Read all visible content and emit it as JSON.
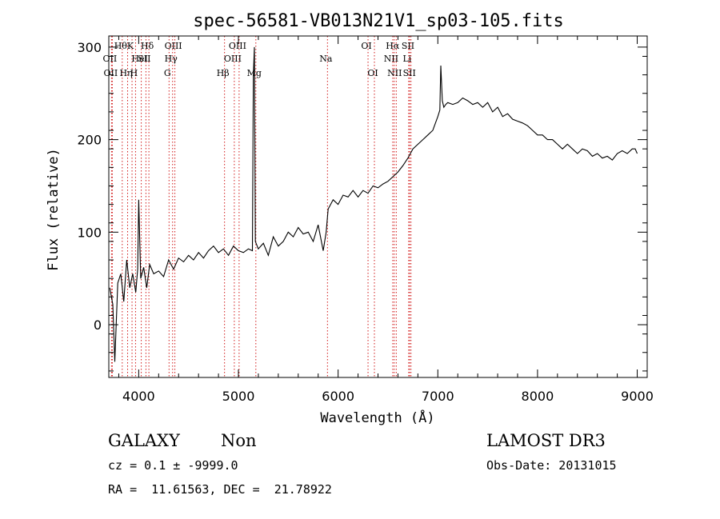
{
  "chart_data": {
    "type": "line",
    "title": "spec-56581-VB013N21V1_sp03-105.fits",
    "xlabel": "Wavelength (Å)",
    "ylabel": "Flux (relative)",
    "xlim": [
      3700,
      9100
    ],
    "ylim": [
      -57,
      312
    ],
    "x_ticks": [
      4000,
      5000,
      6000,
      7000,
      8000,
      9000
    ],
    "y_ticks": [
      0,
      100,
      200,
      300
    ],
    "grid": false,
    "line_color": "#000000",
    "marker_color": "#cc0000",
    "series": [
      {
        "x": [
          3710,
          3740,
          3760,
          3790,
          3820,
          3850,
          3880,
          3910,
          3940,
          3970,
          3990,
          4000,
          4020,
          4050,
          4080,
          4110,
          4150,
          4200,
          4250,
          4300,
          4350,
          4400,
          4450,
          4500,
          4550,
          4600,
          4650,
          4700,
          4750,
          4800,
          4850,
          4900,
          4950,
          5000,
          5050,
          5100,
          5140,
          5150,
          5160,
          5170,
          5200,
          5250,
          5300,
          5350,
          5400,
          5450,
          5500,
          5550,
          5600,
          5650,
          5700,
          5750,
          5800,
          5850,
          5880,
          5900,
          5950,
          6000,
          6050,
          6100,
          6150,
          6200,
          6250,
          6300,
          6350,
          6400,
          6450,
          6500,
          6550,
          6600,
          6650,
          6700,
          6750,
          6800,
          6850,
          6900,
          6950,
          7000,
          7020,
          7030,
          7045,
          7060,
          7080,
          7100,
          7150,
          7200,
          7250,
          7300,
          7350,
          7400,
          7450,
          7500,
          7550,
          7600,
          7650,
          7700,
          7750,
          7800,
          7850,
          7900,
          7950,
          8000,
          8050,
          8100,
          8150,
          8200,
          8250,
          8300,
          8350,
          8400,
          8450,
          8500,
          8550,
          8600,
          8650,
          8700,
          8750,
          8800,
          8850,
          8900,
          8950,
          8980,
          9000
        ],
        "y": [
          40,
          22,
          -40,
          45,
          55,
          25,
          70,
          40,
          55,
          35,
          60,
          135,
          50,
          62,
          40,
          65,
          55,
          58,
          52,
          70,
          60,
          72,
          68,
          75,
          70,
          78,
          72,
          80,
          85,
          78,
          82,
          75,
          85,
          80,
          78,
          82,
          80,
          270,
          300,
          90,
          82,
          88,
          75,
          95,
          85,
          90,
          100,
          95,
          105,
          98,
          100,
          90,
          108,
          80,
          100,
          125,
          135,
          130,
          140,
          138,
          145,
          138,
          145,
          142,
          150,
          148,
          152,
          155,
          160,
          165,
          172,
          180,
          190,
          195,
          200,
          205,
          210,
          225,
          232,
          280,
          242,
          235,
          238,
          240,
          238,
          240,
          245,
          242,
          238,
          240,
          235,
          240,
          230,
          235,
          225,
          228,
          222,
          220,
          218,
          215,
          210,
          205,
          205,
          200,
          200,
          195,
          190,
          195,
          190,
          185,
          190,
          188,
          182,
          185,
          180,
          182,
          178,
          185,
          188,
          185,
          190,
          190,
          185
        ]
      }
    ],
    "line_markers": [
      {
        "x": 3727,
        "label": "OII",
        "row": 2
      },
      {
        "x": 3735,
        "label": "OII",
        "row": 3
      },
      {
        "x": 3835,
        "label": "Hθ",
        "row": 1
      },
      {
        "x": 3889,
        "label": "Hη",
        "row": 3
      },
      {
        "x": 3933,
        "label": "K",
        "row": 1
      },
      {
        "x": 3968,
        "label": "H",
        "row": 3
      },
      {
        "x": 4026,
        "label": "HeI",
        "row": 2
      },
      {
        "x": 4102,
        "label": "Hδ",
        "row": 1
      },
      {
        "x": 4072,
        "label": "SII",
        "row": 2
      },
      {
        "x": 4304,
        "label": "G",
        "row": 3
      },
      {
        "x": 4340,
        "label": "Hγ",
        "row": 2
      },
      {
        "x": 4363,
        "label": "OIII",
        "row": 1
      },
      {
        "x": 4861,
        "label": "Hβ",
        "row": 3
      },
      {
        "x": 4959,
        "label": "OIII",
        "row": 2
      },
      {
        "x": 5007,
        "label": "OIII",
        "row": 1
      },
      {
        "x": 5175,
        "label": "Mg",
        "row": 3
      },
      {
        "x": 5893,
        "label": "Na",
        "row": 2
      },
      {
        "x": 6300,
        "label": "OI",
        "row": 1
      },
      {
        "x": 6364,
        "label": "OI",
        "row": 3
      },
      {
        "x": 6548,
        "label": "NII",
        "row": 2
      },
      {
        "x": 6563,
        "label": "Hα",
        "row": 1
      },
      {
        "x": 6583,
        "label": "NII",
        "row": 3
      },
      {
        "x": 6708,
        "label": "Li",
        "row": 2
      },
      {
        "x": 6717,
        "label": "SII",
        "row": 1
      },
      {
        "x": 6731,
        "label": "SII",
        "row": 3
      }
    ]
  },
  "info": {
    "object_class": "GALAXY",
    "subclass": "Non",
    "survey": "LAMOST DR3",
    "cz_line": "cz = 0.1 ± -9999.0",
    "obs_date_line": "Obs-Date: 20131015",
    "coords_line": "RA =  11.61563, DEC =  21.78922"
  }
}
